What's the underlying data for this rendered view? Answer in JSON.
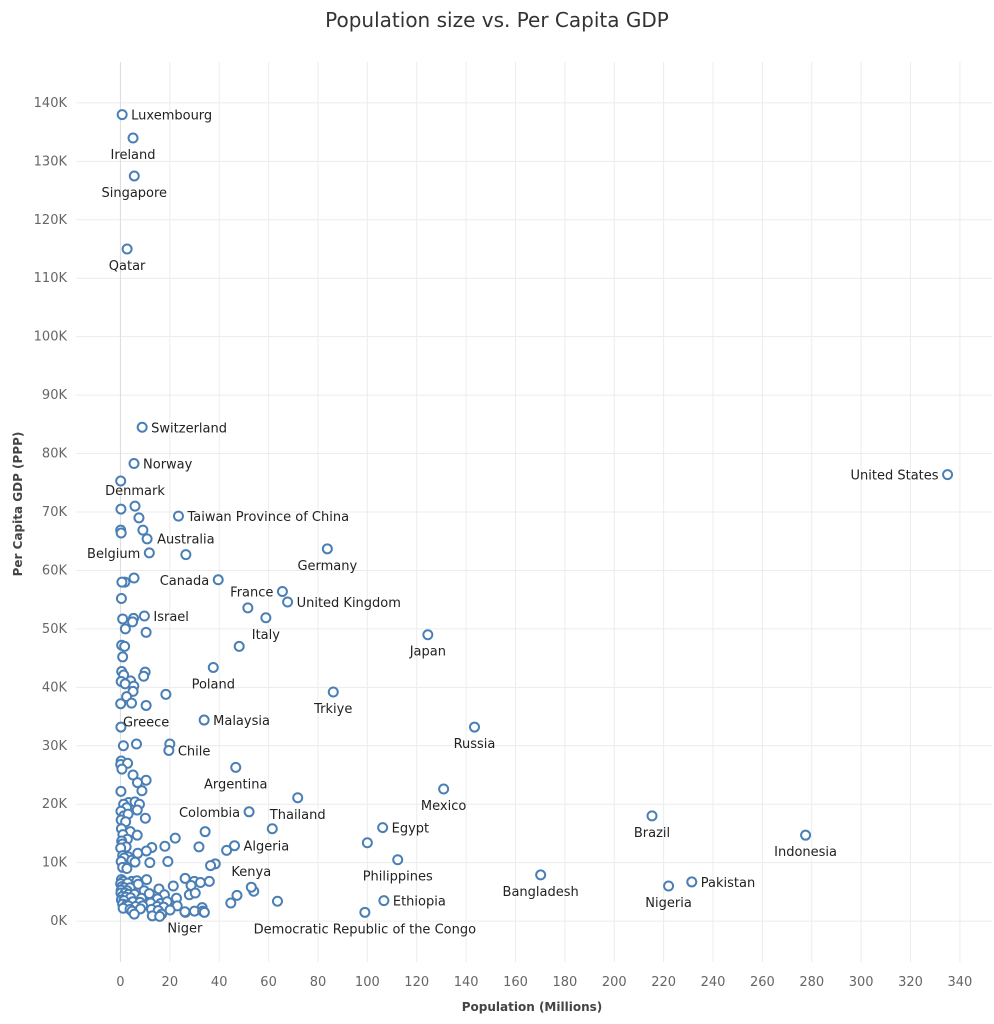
{
  "chart_data": {
    "type": "scatter",
    "title": "Population size vs. Per Capita GDP",
    "xlabel": "Population (Millions)",
    "ylabel": "Per Capita GDP (PPP)",
    "xlim": [
      -18,
      353
    ],
    "ylim": [
      -7000,
      147000
    ],
    "x_ticks": [
      0,
      20,
      40,
      60,
      80,
      100,
      120,
      140,
      160,
      180,
      200,
      220,
      240,
      260,
      280,
      300,
      320,
      340
    ],
    "y_ticks": [
      {
        "value": 0,
        "label": "0K"
      },
      {
        "value": 10000,
        "label": "10K"
      },
      {
        "value": 20000,
        "label": "20K"
      },
      {
        "value": 30000,
        "label": "30K"
      },
      {
        "value": 40000,
        "label": "40K"
      },
      {
        "value": 50000,
        "label": "50K"
      },
      {
        "value": 60000,
        "label": "60K"
      },
      {
        "value": 70000,
        "label": "70K"
      },
      {
        "value": 80000,
        "label": "80K"
      },
      {
        "value": 90000,
        "label": "90K"
      },
      {
        "value": 100000,
        "label": "100K"
      },
      {
        "value": 110000,
        "label": "110K"
      },
      {
        "value": 120000,
        "label": "120K"
      },
      {
        "value": 130000,
        "label": "130K"
      },
      {
        "value": 140000,
        "label": "140K"
      }
    ],
    "grid": true,
    "marker": "hollow-circle",
    "color": "#4a7fb5",
    "labeled_points": [
      {
        "label": "Luxembourg",
        "x": 0.7,
        "y": 138000,
        "pos": "right"
      },
      {
        "label": "Ireland",
        "x": 5.1,
        "y": 134000,
        "pos": "below"
      },
      {
        "label": "Singapore",
        "x": 5.6,
        "y": 127500,
        "pos": "below"
      },
      {
        "label": "Qatar",
        "x": 2.7,
        "y": 115000,
        "pos": "below"
      },
      {
        "label": "Switzerland",
        "x": 8.8,
        "y": 84500,
        "pos": "right"
      },
      {
        "label": "Norway",
        "x": 5.5,
        "y": 78300,
        "pos": "right"
      },
      {
        "label": "United States",
        "x": 335,
        "y": 76400,
        "pos": "left"
      },
      {
        "label": "Denmark",
        "x": 5.9,
        "y": 71000,
        "pos": "above"
      },
      {
        "label": "Taiwan Province of China",
        "x": 23.5,
        "y": 69300,
        "pos": "right"
      },
      {
        "label": "Australia",
        "x": 26.5,
        "y": 62700,
        "pos": "above"
      },
      {
        "label": "Belgium",
        "x": 11.7,
        "y": 63000,
        "pos": "left"
      },
      {
        "label": "Germany",
        "x": 83.8,
        "y": 63700,
        "pos": "below"
      },
      {
        "label": "Canada",
        "x": 39.6,
        "y": 58400,
        "pos": "left"
      },
      {
        "label": "France",
        "x": 65.6,
        "y": 56400,
        "pos": "left"
      },
      {
        "label": "United Kingdom",
        "x": 67.7,
        "y": 54600,
        "pos": "right"
      },
      {
        "label": "Israel",
        "x": 9.7,
        "y": 52200,
        "pos": "right"
      },
      {
        "label": "Italy",
        "x": 58.9,
        "y": 51900,
        "pos": "below"
      },
      {
        "label": "Japan",
        "x": 124.5,
        "y": 49000,
        "pos": "below"
      },
      {
        "label": "Poland",
        "x": 37.6,
        "y": 43400,
        "pos": "below"
      },
      {
        "label": "Trkiye",
        "x": 86.2,
        "y": 39200,
        "pos": "below"
      },
      {
        "label": "Greece",
        "x": 10.4,
        "y": 36900,
        "pos": "below"
      },
      {
        "label": "Malaysia",
        "x": 33.9,
        "y": 34400,
        "pos": "right"
      },
      {
        "label": "Russia",
        "x": 143.4,
        "y": 33200,
        "pos": "below"
      },
      {
        "label": "Chile",
        "x": 19.6,
        "y": 29200,
        "pos": "right"
      },
      {
        "label": "Argentina",
        "x": 46.7,
        "y": 26300,
        "pos": "below"
      },
      {
        "label": "Mexico",
        "x": 130.9,
        "y": 22600,
        "pos": "below"
      },
      {
        "label": "Colombia",
        "x": 52.1,
        "y": 18700,
        "pos": "left"
      },
      {
        "label": "Thailand",
        "x": 71.8,
        "y": 21100,
        "pos": "below"
      },
      {
        "label": "Brazil",
        "x": 215.3,
        "y": 18000,
        "pos": "below"
      },
      {
        "label": "Egypt",
        "x": 106.2,
        "y": 16000,
        "pos": "right"
      },
      {
        "label": "Indonesia",
        "x": 277.5,
        "y": 14700,
        "pos": "below"
      },
      {
        "label": "Algeria",
        "x": 46.2,
        "y": 12900,
        "pos": "right"
      },
      {
        "label": "Kenya",
        "x": 53.0,
        "y": 5800,
        "pos": "above"
      },
      {
        "label": "Philippines",
        "x": 112.3,
        "y": 10500,
        "pos": "below"
      },
      {
        "label": "Bangladesh",
        "x": 170.2,
        "y": 7900,
        "pos": "below"
      },
      {
        "label": "Pakistan",
        "x": 231.4,
        "y": 6700,
        "pos": "right"
      },
      {
        "label": "Nigeria",
        "x": 222.0,
        "y": 6000,
        "pos": "below"
      },
      {
        "label": "Ethiopia",
        "x": 106.7,
        "y": 3500,
        "pos": "right"
      },
      {
        "label": "Niger",
        "x": 26.1,
        "y": 1600,
        "pos": "below"
      },
      {
        "label": "Democratic Republic of the Congo",
        "x": 99.0,
        "y": 1500,
        "pos": "below"
      }
    ],
    "unlabeled_points": [
      [
        0.1,
        75300
      ],
      [
        0.2,
        70500
      ],
      [
        0.1,
        66900
      ],
      [
        0.3,
        66400
      ],
      [
        7.5,
        69000
      ],
      [
        9.1,
        66900
      ],
      [
        10.8,
        65400
      ],
      [
        5.5,
        58700
      ],
      [
        1.8,
        58000
      ],
      [
        0.6,
        58000
      ],
      [
        0.4,
        55200
      ],
      [
        51.6,
        53600
      ],
      [
        0.9,
        51700
      ],
      [
        5.3,
        51800
      ],
      [
        4.9,
        51200
      ],
      [
        10.4,
        49400
      ],
      [
        2.0,
        50000
      ],
      [
        0.5,
        47200
      ],
      [
        1.7,
        47000
      ],
      [
        48.1,
        47000
      ],
      [
        0.9,
        45200
      ],
      [
        0.5,
        42700
      ],
      [
        1.3,
        42100
      ],
      [
        10.0,
        42600
      ],
      [
        9.4,
        41900
      ],
      [
        4.1,
        41100
      ],
      [
        0.3,
        41000
      ],
      [
        1.9,
        40600
      ],
      [
        5.4,
        40200
      ],
      [
        5.1,
        39300
      ],
      [
        2.5,
        38400
      ],
      [
        18.4,
        38800
      ],
      [
        0.1,
        37200
      ],
      [
        4.5,
        37300
      ],
      [
        0.2,
        33200
      ],
      [
        6.5,
        30300
      ],
      [
        1.2,
        30000
      ],
      [
        20.0,
        30300
      ],
      [
        0.3,
        27400
      ],
      [
        0.1,
        26800
      ],
      [
        2.9,
        27000
      ],
      [
        0.6,
        26000
      ],
      [
        5.1,
        25000
      ],
      [
        10.4,
        24100
      ],
      [
        6.9,
        23700
      ],
      [
        0.2,
        22200
      ],
      [
        8.7,
        22300
      ],
      [
        3.3,
        20300
      ],
      [
        5.9,
        20400
      ],
      [
        7.7,
        20000
      ],
      [
        1.3,
        20000
      ],
      [
        2.5,
        19400
      ],
      [
        0.2,
        18800
      ],
      [
        6.8,
        19000
      ],
      [
        1.4,
        18000
      ],
      [
        3.1,
        18300
      ],
      [
        0.3,
        17300
      ],
      [
        10.1,
        17600
      ],
      [
        2.1,
        17000
      ],
      [
        61.5,
        15800
      ],
      [
        0.4,
        15800
      ],
      [
        4.0,
        15300
      ],
      [
        34.3,
        15300
      ],
      [
        1.0,
        14800
      ],
      [
        6.8,
        14700
      ],
      [
        22.2,
        14200
      ],
      [
        2.8,
        14000
      ],
      [
        0.5,
        13700
      ],
      [
        0.8,
        13200
      ],
      [
        100.0,
        13400
      ],
      [
        2.3,
        12700
      ],
      [
        12.7,
        12600
      ],
      [
        18.0,
        12800
      ],
      [
        31.8,
        12700
      ],
      [
        0.1,
        12500
      ],
      [
        10.5,
        12000
      ],
      [
        43.0,
        12100
      ],
      [
        7.0,
        11600
      ],
      [
        0.9,
        11200
      ],
      [
        3.1,
        11000
      ],
      [
        1.5,
        10800
      ],
      [
        4.6,
        10400
      ],
      [
        0.3,
        10200
      ],
      [
        5.9,
        10100
      ],
      [
        11.9,
        10000
      ],
      [
        19.2,
        10200
      ],
      [
        38.4,
        9800
      ],
      [
        36.5,
        9500
      ],
      [
        0.9,
        9200
      ],
      [
        2.6,
        9000
      ],
      [
        0.4,
        7100
      ],
      [
        1.1,
        6800
      ],
      [
        4.6,
        6800
      ],
      [
        6.7,
        6900
      ],
      [
        10.6,
        7100
      ],
      [
        26.2,
        7300
      ],
      [
        29.9,
        6800
      ],
      [
        32.4,
        6600
      ],
      [
        36.0,
        6800
      ],
      [
        0.1,
        6400
      ],
      [
        2.9,
        6500
      ],
      [
        7.2,
        6300
      ],
      [
        21.4,
        6000
      ],
      [
        28.6,
        6100
      ],
      [
        0.6,
        5900
      ],
      [
        1.6,
        5700
      ],
      [
        3.9,
        5700
      ],
      [
        15.6,
        5500
      ],
      [
        0.3,
        5300
      ],
      [
        2.7,
        5200
      ],
      [
        9.6,
        5200
      ],
      [
        54.0,
        5100
      ],
      [
        0.2,
        4800
      ],
      [
        1.9,
        4800
      ],
      [
        3.3,
        4600
      ],
      [
        5.7,
        4600
      ],
      [
        11.7,
        4700
      ],
      [
        17.8,
        4500
      ],
      [
        27.9,
        4500
      ],
      [
        30.3,
        4800
      ],
      [
        47.2,
        4400
      ],
      [
        0.7,
        4200
      ],
      [
        2.2,
        4100
      ],
      [
        4.1,
        4000
      ],
      [
        8.5,
        3900
      ],
      [
        15.0,
        3800
      ],
      [
        22.7,
        3900
      ],
      [
        63.6,
        3400
      ],
      [
        0.4,
        3600
      ],
      [
        1.4,
        3500
      ],
      [
        5.0,
        3300
      ],
      [
        7.9,
        3200
      ],
      [
        12.2,
        3100
      ],
      [
        16.3,
        3000
      ],
      [
        18.9,
        3300
      ],
      [
        44.7,
        3100
      ],
      [
        0.9,
        2900
      ],
      [
        2.5,
        2800
      ],
      [
        3.2,
        2600
      ],
      [
        6.1,
        2500
      ],
      [
        9.0,
        2600
      ],
      [
        14.9,
        2500
      ],
      [
        17.5,
        2400
      ],
      [
        23.0,
        2600
      ],
      [
        33.1,
        2300
      ],
      [
        1.1,
        2200
      ],
      [
        3.9,
        2000
      ],
      [
        8.1,
        2100
      ],
      [
        12.6,
        2000
      ],
      [
        15.3,
        1800
      ],
      [
        20.1,
        1900
      ],
      [
        30.0,
        1700
      ],
      [
        33.3,
        1700
      ],
      [
        4.7,
        1700
      ],
      [
        5.6,
        1200
      ],
      [
        16.7,
        1200
      ],
      [
        26.3,
        1500
      ],
      [
        34.0,
        1500
      ],
      [
        12.9,
        900
      ],
      [
        15.9,
        800
      ]
    ]
  }
}
